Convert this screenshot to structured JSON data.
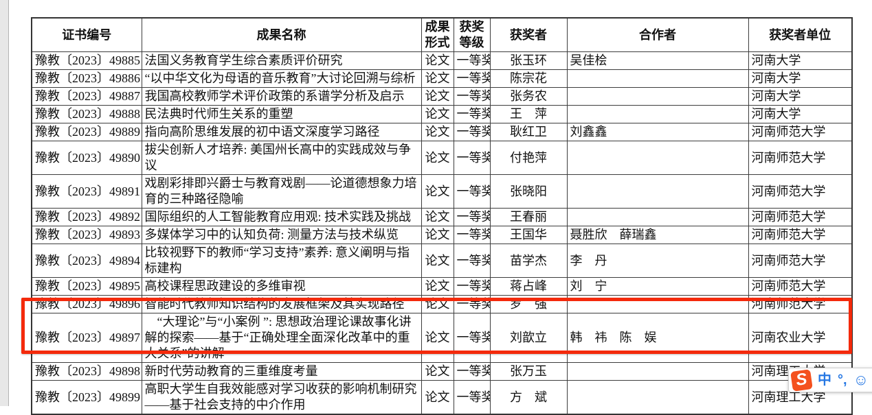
{
  "document": {
    "table": {
      "headers": [
        "证书编号",
        "成果名称",
        "成果形式",
        "获奖等级",
        "获奖者",
        "合作者",
        "获奖者单位"
      ],
      "rows": [
        {
          "cert": "豫教〔2023〕49885",
          "title": "法国义务教育学生综合素质评价研究",
          "form": "论文",
          "award": "一等奖",
          "winner": "张玉环",
          "collab": "吴佳桧",
          "unit": "河南大学",
          "highlighted": false
        },
        {
          "cert": "豫教〔2023〕49886",
          "title": "“以中华文化为母语的音乐教育”大讨论回溯与综析",
          "form": "论文",
          "award": "一等奖",
          "winner": "陈宗花",
          "collab": "",
          "unit": "河南大学",
          "highlighted": false
        },
        {
          "cert": "豫教〔2023〕49887",
          "title": "我国高校教师学术评价政策的系谱学分析及启示",
          "form": "论文",
          "award": "一等奖",
          "winner": "张务农",
          "collab": "",
          "unit": "河南大学",
          "highlighted": false
        },
        {
          "cert": "豫教〔2023〕49888",
          "title": "民法典时代师生关系的重塑",
          "form": "论文",
          "award": "一等奖",
          "winner": "王　萍",
          "collab": "",
          "unit": "河南大学",
          "highlighted": false
        },
        {
          "cert": "豫教〔2023〕49889",
          "title": "指向高阶思维发展的初中语文深度学习路径",
          "form": "论文",
          "award": "一等奖",
          "winner": "耿红卫",
          "collab": "刘鑫鑫",
          "unit": "河南师范大学",
          "highlighted": false
        },
        {
          "cert": "豫教〔2023〕49890",
          "title": "拔尖创新人才培养: 美国州长高中的实践成效与争议",
          "form": "论文",
          "award": "一等奖",
          "winner": "付艳萍",
          "collab": "",
          "unit": "河南师范大学",
          "highlighted": false
        },
        {
          "cert": "豫教〔2023〕49891",
          "title": "戏剧彩排即兴爵士与教育戏剧——论道德想象力培育的三种路径隐喻",
          "form": "论文",
          "award": "一等奖",
          "winner": "张晓阳",
          "collab": "",
          "unit": "河南师范大学",
          "highlighted": false
        },
        {
          "cert": "豫教〔2023〕49892",
          "title": "国际组织的人工智能教育应用观: 技术实践及挑战",
          "form": "论文",
          "award": "一等奖",
          "winner": "王春丽",
          "collab": "",
          "unit": "河南师范大学",
          "highlighted": false
        },
        {
          "cert": "豫教〔2023〕49893",
          "title": "多媒体学习中的认知负荷: 测量方法与技术纵览",
          "form": "论文",
          "award": "一等奖",
          "winner": "王国华",
          "collab": "聂胜欣　薛瑞鑫",
          "unit": "河南师范大学",
          "highlighted": false
        },
        {
          "cert": "豫教〔2023〕49894",
          "title": "比较视野下的教师“学习支持”素养: 意义阐明与指标建构",
          "form": "论文",
          "award": "一等奖",
          "winner": "苗学杰",
          "collab": "李　丹",
          "unit": "河南师范大学",
          "highlighted": false
        },
        {
          "cert": "豫教〔2023〕49895",
          "title": "高校课程思政建设的多维审视",
          "form": "论文",
          "award": "一等奖",
          "winner": "蒋占峰",
          "collab": "刘　宁",
          "unit": "河南师范大学",
          "highlighted": false
        },
        {
          "cert": "豫教〔2023〕49896",
          "title": "智能时代教师知识结构的发展框架及其实现路径",
          "form": "论文",
          "award": "一等奖",
          "winner": "罗　强",
          "collab": "",
          "unit": "河南师范大学",
          "highlighted": false
        },
        {
          "cert": "豫教〔2023〕49897",
          "title": "　“大理论”与“小案例 ”: 思想政治理论课故事化讲解的探索——基于“正确处理全面深化改革中的重大关系”的讲解",
          "form": "论文",
          "award": "一等奖",
          "winner": "刘歆立",
          "collab": "韩　祎　陈　娱",
          "unit": "河南农业大学",
          "highlighted": true
        },
        {
          "cert": "豫教〔2023〕49898",
          "title": "新时代劳动教育的三重维度考量",
          "form": "论文",
          "award": "一等奖",
          "winner": "张万玉",
          "collab": "",
          "unit": "河南理工大学",
          "highlighted": false
        },
        {
          "cert": "豫教〔2023〕49899",
          "title": "高职大学生自我效能感对学习收获的影响机制研究——基于社会支持的中介作用",
          "form": "论文",
          "award": "一等奖",
          "winner": "方　斌",
          "collab": "",
          "unit": "河南理工大学",
          "highlighted": false
        }
      ]
    },
    "annotation": {
      "type": "red-rectangle",
      "color": "#f42a0c",
      "marks_row_cert": "豫教〔2023〕49897"
    }
  },
  "ime_toolbar": {
    "logo_letter": "S",
    "logo_color": "#f4511e",
    "accent_color": "#2577e3",
    "chinese_mode_label": "中",
    "punctuation_label": "°,",
    "emoji_label": "☺"
  }
}
